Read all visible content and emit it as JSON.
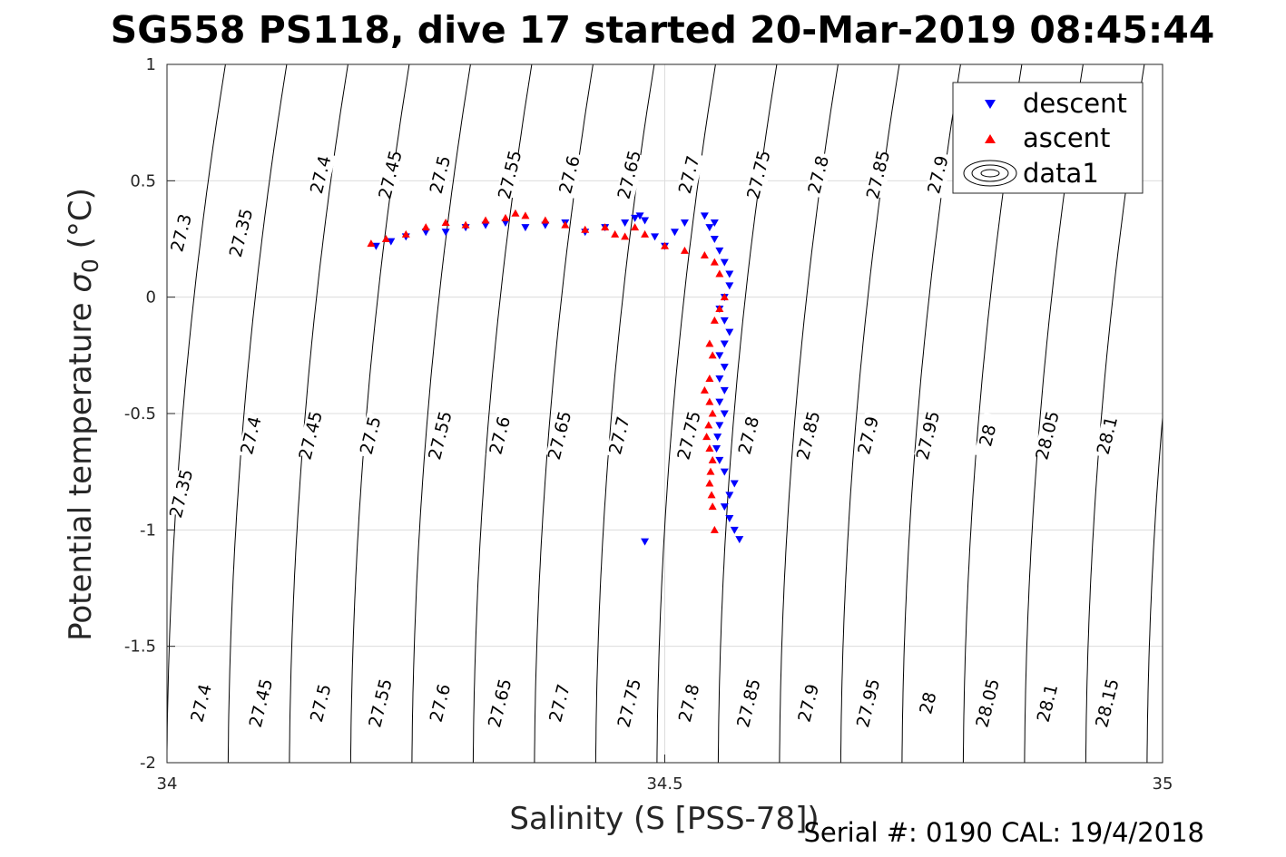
{
  "chart_data": {
    "type": "scatter",
    "title": "SG558 PS118, dive 17 started 20-Mar-2019 08:45:44",
    "xlabel": "Salinity (S [PSS-78])",
    "ylabel": "Potential temperature σ₀ (°C)",
    "ylabel_main": "Potential temperature ",
    "ylabel_sigma": "σ",
    "ylabel_sub": "0",
    "ylabel_unit": " (°C)",
    "xlim": [
      34,
      35
    ],
    "ylim": [
      -2,
      1
    ],
    "xticks": [
      "34",
      "34.5",
      "35"
    ],
    "yticks": [
      "1",
      "0.5",
      "0",
      "-0.5",
      "-1",
      "-1.5",
      "-2"
    ],
    "grid": true,
    "legend_placement": "top-right",
    "legend": [
      "descent",
      "ascent",
      "data1"
    ],
    "footer": "Serial #: 0190  CAL: 19/4/2018",
    "colors": {
      "descent": "#0000ff",
      "ascent": "#ff0000",
      "contour": "#000000"
    },
    "contours": {
      "lines": [
        27.3,
        27.35,
        27.4,
        27.45,
        27.5,
        27.55,
        27.6,
        27.65,
        27.7,
        27.75,
        27.8,
        27.85,
        27.9,
        27.95,
        28.0,
        28.05,
        28.1,
        28.15
      ],
      "labels_top": [
        {
          "text": "27.3",
          "s": 34.02,
          "t": 0.27
        },
        {
          "text": "27.35",
          "s": 34.08,
          "t": 0.27
        },
        {
          "text": "27.4",
          "s": 34.16,
          "t": 0.52
        },
        {
          "text": "27.45",
          "s": 34.23,
          "t": 0.52
        },
        {
          "text": "27.5",
          "s": 34.28,
          "t": 0.52
        },
        {
          "text": "27.55",
          "s": 34.35,
          "t": 0.52
        },
        {
          "text": "27.6",
          "s": 34.41,
          "t": 0.52
        },
        {
          "text": "27.65",
          "s": 34.47,
          "t": 0.52
        },
        {
          "text": "27.7",
          "s": 34.53,
          "t": 0.52
        },
        {
          "text": "27.75",
          "s": 34.6,
          "t": 0.52
        },
        {
          "text": "27.8",
          "s": 34.66,
          "t": 0.52
        },
        {
          "text": "27.85",
          "s": 34.72,
          "t": 0.52
        },
        {
          "text": "27.9",
          "s": 34.78,
          "t": 0.52
        }
      ],
      "labels_mid": [
        {
          "text": "27.35",
          "s": 34.02,
          "t": -0.85
        },
        {
          "text": "27.4",
          "s": 34.09,
          "t": -0.6
        },
        {
          "text": "27.45",
          "s": 34.15,
          "t": -0.6
        },
        {
          "text": "27.5",
          "s": 34.21,
          "t": -0.6
        },
        {
          "text": "27.55",
          "s": 34.28,
          "t": -0.6
        },
        {
          "text": "27.6",
          "s": 34.34,
          "t": -0.6
        },
        {
          "text": "27.65",
          "s": 34.4,
          "t": -0.6
        },
        {
          "text": "27.7",
          "s": 34.46,
          "t": -0.6
        },
        {
          "text": "27.75",
          "s": 34.53,
          "t": -0.6
        },
        {
          "text": "27.8",
          "s": 34.59,
          "t": -0.6
        },
        {
          "text": "27.85",
          "s": 34.65,
          "t": -0.6
        },
        {
          "text": "27.9",
          "s": 34.71,
          "t": -0.6
        },
        {
          "text": "27.95",
          "s": 34.77,
          "t": -0.6
        },
        {
          "text": "28",
          "s": 34.83,
          "t": -0.6
        },
        {
          "text": "28.05",
          "s": 34.89,
          "t": -0.6
        },
        {
          "text": "28.1",
          "s": 34.95,
          "t": -0.6
        }
      ],
      "labels_bottom": [
        {
          "text": "27.4",
          "s": 34.04,
          "t": -1.75
        },
        {
          "text": "27.45",
          "s": 34.1,
          "t": -1.75
        },
        {
          "text": "27.5",
          "s": 34.16,
          "t": -1.75
        },
        {
          "text": "27.55",
          "s": 34.22,
          "t": -1.75
        },
        {
          "text": "27.6",
          "s": 34.28,
          "t": -1.75
        },
        {
          "text": "27.65",
          "s": 34.34,
          "t": -1.75
        },
        {
          "text": "27.7",
          "s": 34.4,
          "t": -1.75
        },
        {
          "text": "27.75",
          "s": 34.47,
          "t": -1.75
        },
        {
          "text": "27.8",
          "s": 34.53,
          "t": -1.75
        },
        {
          "text": "27.85",
          "s": 34.59,
          "t": -1.75
        },
        {
          "text": "27.9",
          "s": 34.65,
          "t": -1.75
        },
        {
          "text": "27.95",
          "s": 34.71,
          "t": -1.75
        },
        {
          "text": "28",
          "s": 34.77,
          "t": -1.75
        },
        {
          "text": "28.05",
          "s": 34.83,
          "t": -1.75
        },
        {
          "text": "28.1",
          "s": 34.89,
          "t": -1.75
        },
        {
          "text": "28.15",
          "s": 34.95,
          "t": -1.75
        }
      ]
    },
    "series": [
      {
        "name": "descent",
        "marker": "triangle-down",
        "x": [
          34.21,
          34.225,
          34.24,
          34.26,
          34.28,
          34.3,
          34.32,
          34.34,
          34.36,
          34.38,
          34.4,
          34.42,
          34.44,
          34.46,
          34.47,
          34.475,
          34.48,
          34.49,
          34.5,
          34.51,
          34.52,
          34.54,
          34.545,
          34.55,
          34.55,
          34.555,
          34.56,
          34.565,
          34.565,
          34.56,
          34.555,
          34.56,
          34.565,
          34.56,
          34.555,
          34.56,
          34.555,
          34.56,
          34.555,
          34.56,
          34.555,
          34.553,
          34.552,
          34.555,
          34.56,
          34.57,
          34.565,
          34.56,
          34.565,
          34.57,
          34.575,
          34.48
        ],
        "y": [
          0.22,
          0.24,
          0.26,
          0.28,
          0.28,
          0.3,
          0.31,
          0.32,
          0.3,
          0.31,
          0.32,
          0.28,
          0.3,
          0.32,
          0.34,
          0.35,
          0.33,
          0.26,
          0.22,
          0.28,
          0.32,
          0.35,
          0.3,
          0.32,
          0.25,
          0.2,
          0.15,
          0.1,
          0.05,
          0.0,
          -0.05,
          -0.1,
          -0.15,
          -0.2,
          -0.25,
          -0.3,
          -0.35,
          -0.4,
          -0.45,
          -0.5,
          -0.55,
          -0.6,
          -0.65,
          -0.7,
          -0.75,
          -0.8,
          -0.85,
          -0.9,
          -0.95,
          -1.0,
          -1.04,
          -1.05
        ]
      },
      {
        "name": "ascent",
        "marker": "triangle-up",
        "x": [
          34.205,
          34.22,
          34.24,
          34.26,
          34.28,
          34.3,
          34.32,
          34.34,
          34.35,
          34.36,
          34.38,
          34.4,
          34.42,
          34.44,
          34.45,
          34.46,
          34.47,
          34.48,
          34.5,
          34.52,
          34.54,
          34.55,
          34.555,
          34.56,
          34.555,
          34.55,
          34.545,
          34.548,
          34.545,
          34.54,
          34.545,
          34.548,
          34.544,
          34.542,
          34.545,
          34.548,
          34.546,
          34.545,
          34.547,
          34.548,
          34.55
        ],
        "y": [
          0.23,
          0.25,
          0.27,
          0.3,
          0.32,
          0.31,
          0.33,
          0.34,
          0.36,
          0.35,
          0.33,
          0.31,
          0.29,
          0.3,
          0.27,
          0.26,
          0.3,
          0.27,
          0.22,
          0.2,
          0.18,
          0.15,
          0.1,
          0.0,
          -0.05,
          -0.1,
          -0.2,
          -0.25,
          -0.35,
          -0.4,
          -0.45,
          -0.5,
          -0.55,
          -0.6,
          -0.65,
          -0.7,
          -0.75,
          -0.8,
          -0.85,
          -0.9,
          -1.0
        ]
      }
    ]
  }
}
